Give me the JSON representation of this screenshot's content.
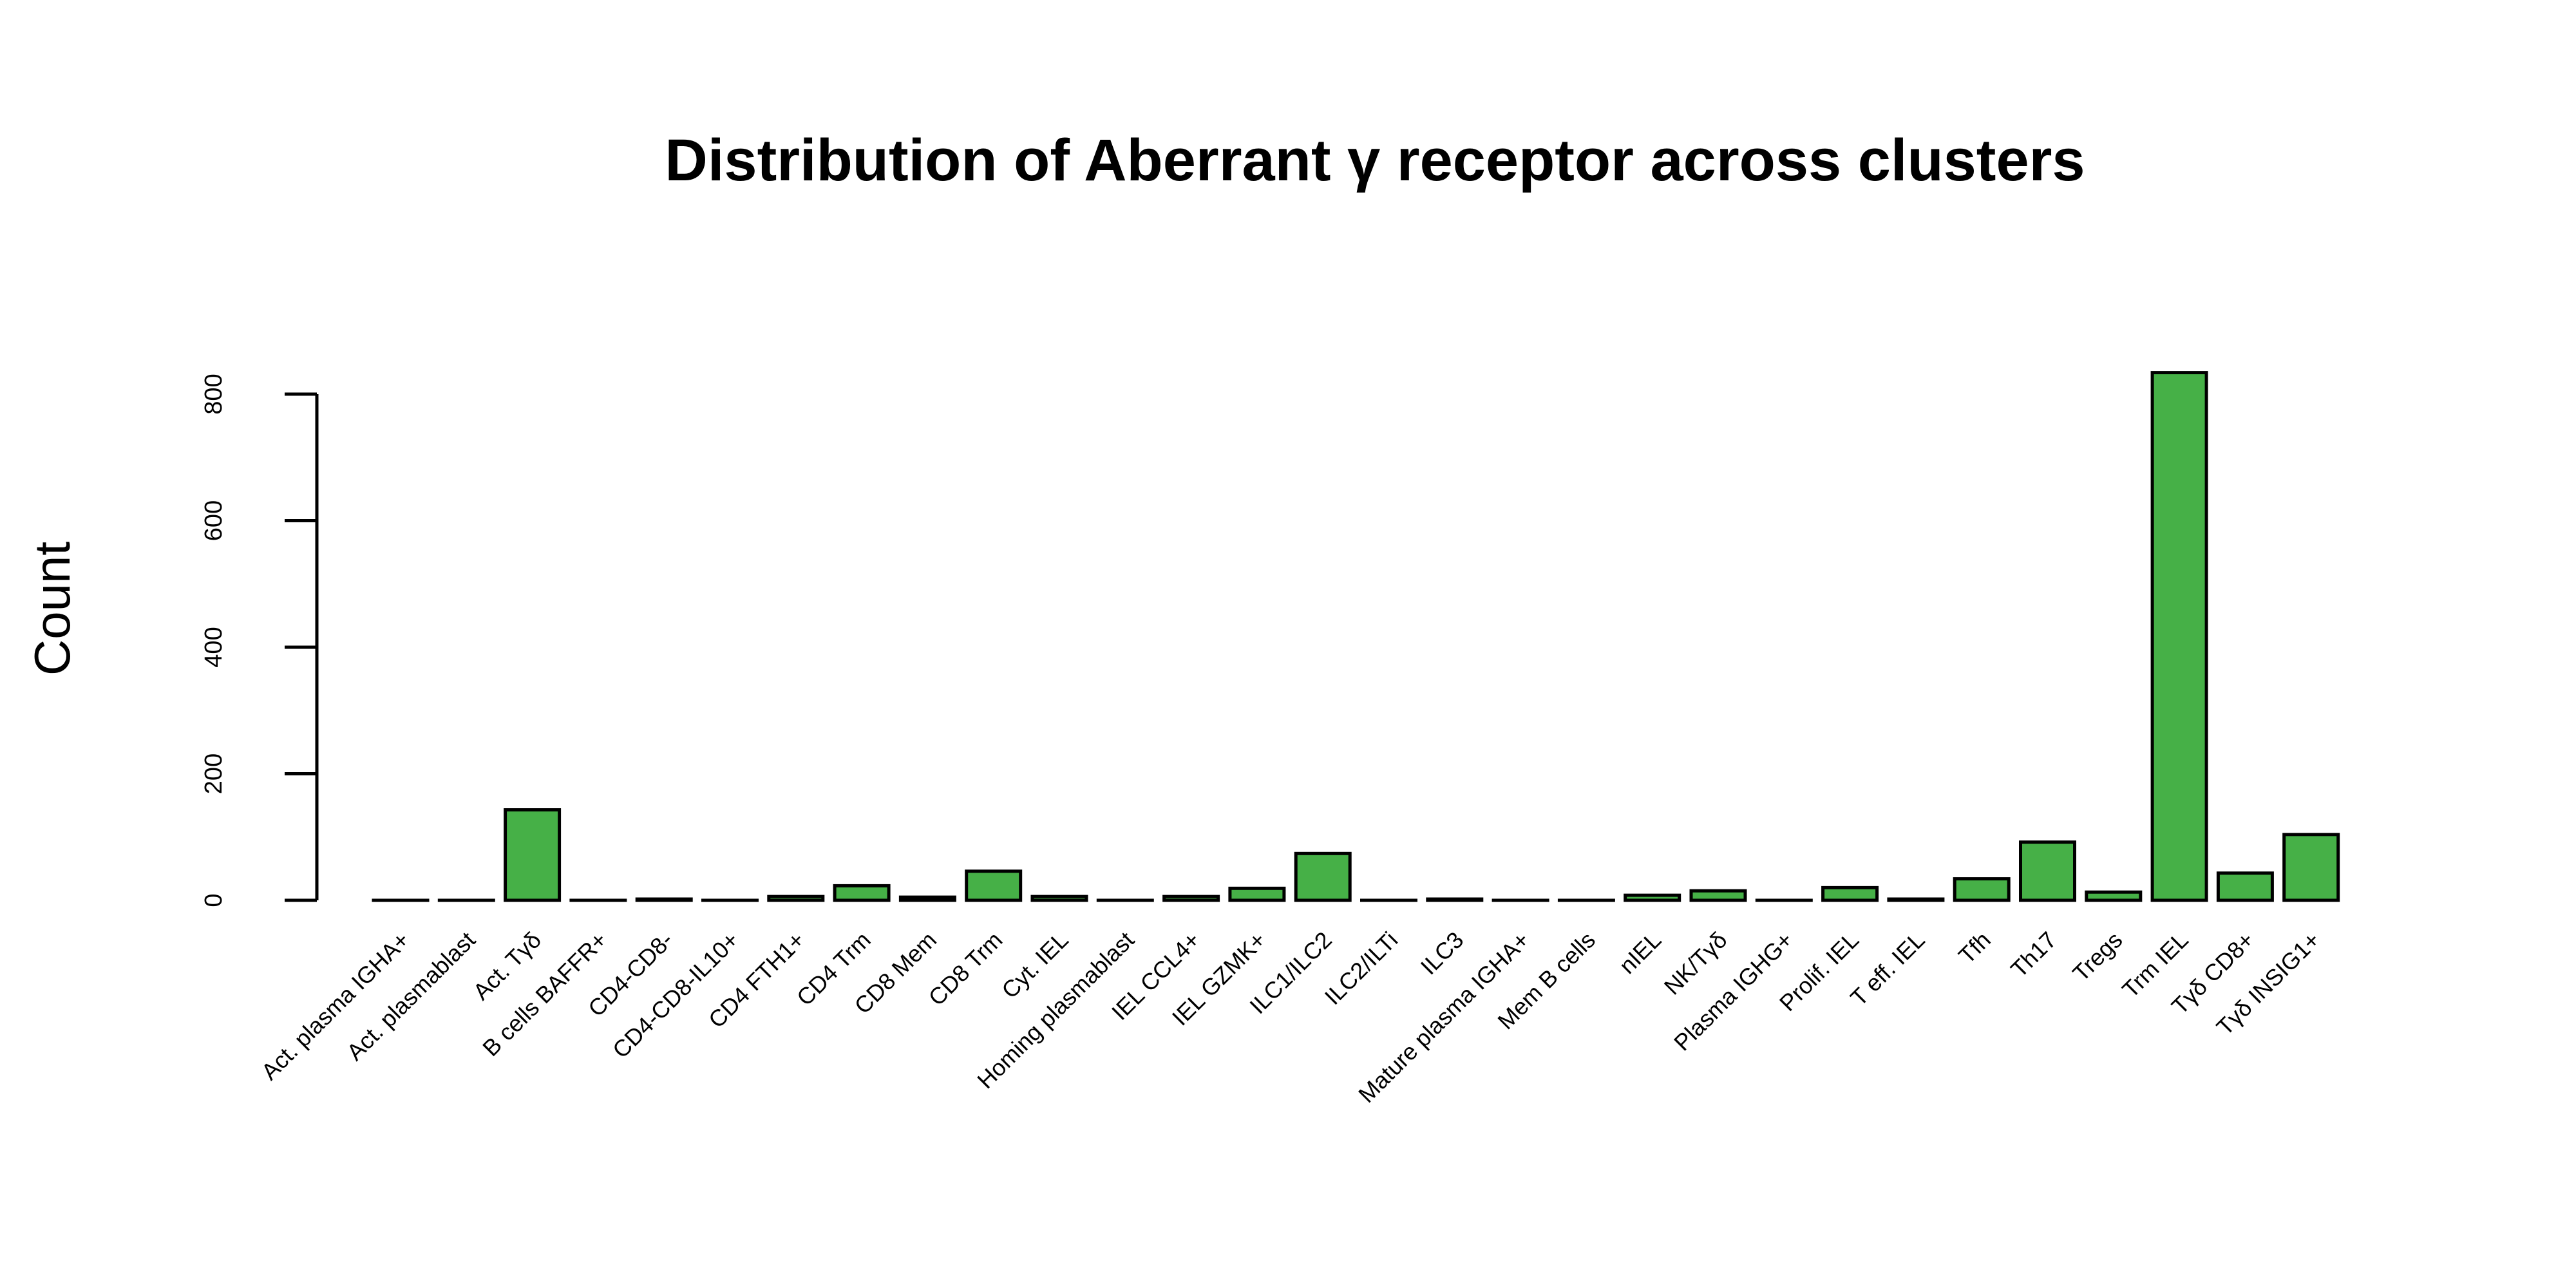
{
  "chart_data": {
    "type": "bar",
    "title": "Distribution of Aberrant γ receptor across clusters",
    "xlabel": "",
    "ylabel": "Count",
    "ylim": [
      0,
      800
    ],
    "yticks": [
      0,
      200,
      400,
      600,
      800
    ],
    "grid": false,
    "bar_color": "#46b047",
    "categories": [
      "Act. plasma IGHA+",
      "Act. plasmablast",
      "Act. Tγδ",
      "B cells BAFFR+",
      "CD4-CD8-",
      "CD4-CD8-IL10+",
      "CD4 FTH1+",
      "CD4 Trm",
      "CD8 Mem",
      "CD8 Trm",
      "Cyt. IEL",
      "Homing plasmablast",
      "IEL CCL4+",
      "IEL GZMK+",
      "ILC1/ILC2",
      "ILC2/ILTi",
      "ILC3",
      "Mature plasma IGHA+",
      "Mem B cells",
      "nIEL",
      "NK/Tγδ",
      "Plasma IGHG+",
      "Prolif. IEL",
      "T eff. IEL",
      "Tfh",
      "Th17",
      "Tregs",
      "Trm IEL",
      "Tγδ CD8+",
      "Tγδ INSIG1+"
    ],
    "values": [
      0,
      0,
      143,
      0,
      2,
      0,
      6,
      23,
      5,
      46,
      6,
      0,
      6,
      19,
      74,
      0,
      2,
      0,
      0,
      8,
      15,
      0,
      20,
      2,
      34,
      92,
      13,
      834,
      43,
      104
    ]
  }
}
